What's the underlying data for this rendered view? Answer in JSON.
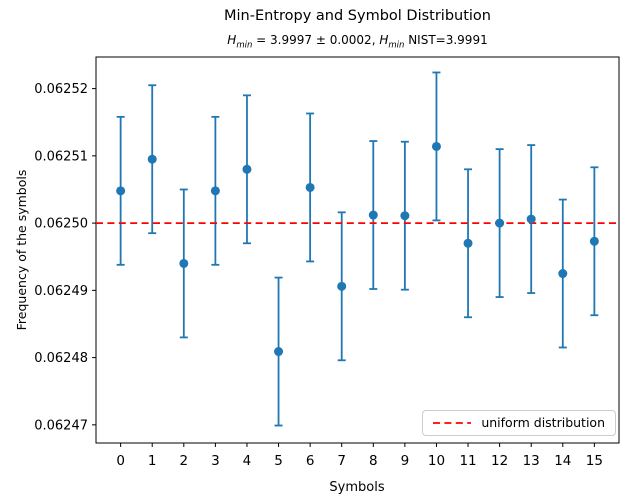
{
  "chart_data": {
    "type": "scatter-errorbar",
    "title": "Min-Entropy and Symbol Distribution",
    "subtitle": {
      "var1": "H",
      "sub1": "min",
      "seg1": " = 3.9997 ± 0.0002, ",
      "var2": "H",
      "sub2": "min",
      "seg2": " NIST=3.9991"
    },
    "subtitle_text": "H_min = 3.9997 ± 0.0002, H_min NIST=3.9991",
    "xlabel": "Symbols",
    "ylabel": "Frequency of the symbols",
    "x": [
      0,
      1,
      2,
      3,
      4,
      5,
      6,
      7,
      8,
      9,
      10,
      11,
      12,
      13,
      14,
      15
    ],
    "x_labels": [
      "0",
      "1",
      "2",
      "3",
      "4",
      "5",
      "6",
      "7",
      "8",
      "9",
      "10",
      "11",
      "12",
      "13",
      "14",
      "15"
    ],
    "values": [
      0.0625048,
      0.0625095,
      0.062494,
      0.0625048,
      0.062508,
      0.0624809,
      0.0625053,
      0.0624906,
      0.0625012,
      0.0625011,
      0.0625114,
      0.062497,
      0.0625,
      0.0625006,
      0.0624925,
      0.0624973
    ],
    "yerr": 1.1e-05,
    "uniform_value": 0.0625,
    "ytick_values": [
      0.06247,
      0.06248,
      0.06249,
      0.0625,
      0.06251,
      0.06252
    ],
    "ytick_labels": [
      "0.06247",
      "0.06248",
      "0.06249",
      "0.06250",
      "0.06251",
      "0.06252"
    ],
    "xlim": [
      -0.78,
      15.78
    ],
    "ylim": [
      0.0624673,
      0.0625247
    ],
    "grid": false,
    "legend": {
      "label": "uniform distribution",
      "position": "lower right"
    },
    "colors": {
      "marker": "#1f77b4",
      "errorbar": "#1f77b4",
      "uniform_line": "#ff0000",
      "axes": "#000000"
    }
  }
}
